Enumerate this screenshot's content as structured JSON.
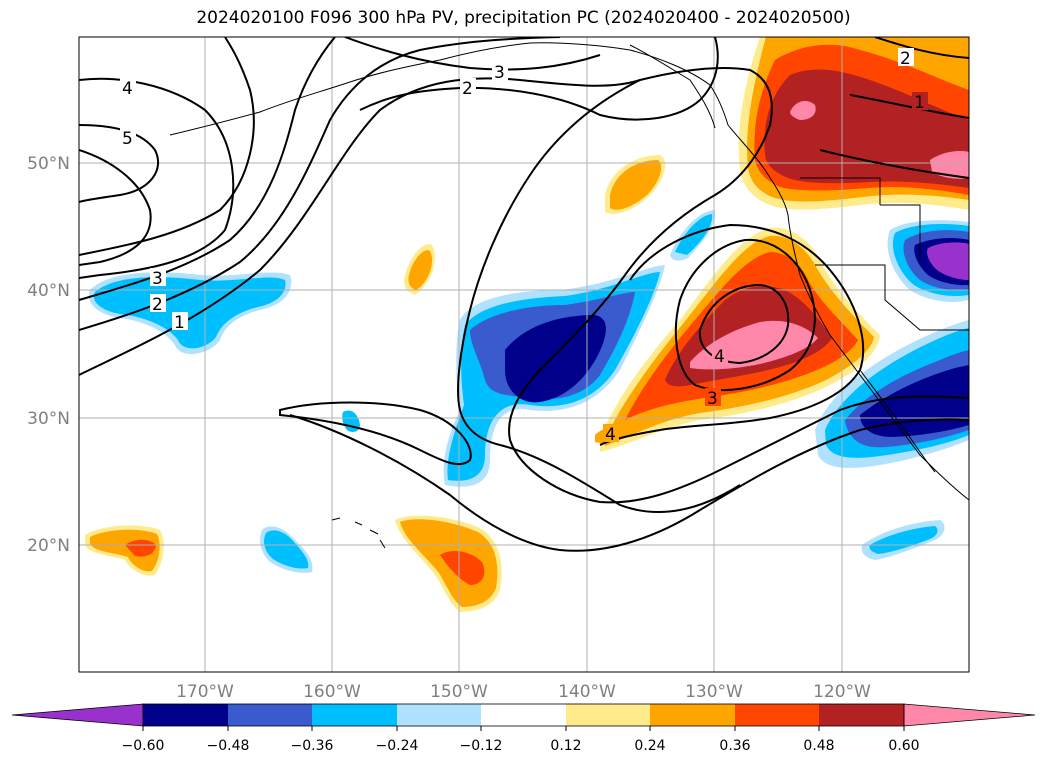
{
  "title": "2024020100 F096 300 hPa PV, precipitation PC (2024020400 - 2024020500)",
  "map": {
    "lon_ticks": [
      "170°W",
      "160°W",
      "150°W",
      "140°W",
      "130°W",
      "120°W"
    ],
    "lat_ticks": [
      "50°N",
      "40°N",
      "30°N",
      "20°N"
    ],
    "gridlines": true,
    "pv_contour_labels": [
      "4",
      "5",
      "3",
      "2",
      "1",
      "2",
      "3",
      "4",
      "3",
      "4",
      "2",
      "1",
      "2",
      "1"
    ]
  },
  "colorbar": {
    "tick_labels": [
      "−0.60",
      "−0.48",
      "−0.36",
      "−0.24",
      "−0.12",
      "0.12",
      "0.24",
      "0.36",
      "0.48",
      "0.60"
    ],
    "colors": [
      "#9932cc",
      "#00008b",
      "#3a5bcd",
      "#00bfff",
      "#b0e2ff",
      "#ffffff",
      "#ffeb8c",
      "#ffa500",
      "#ff4500",
      "#b22222",
      "#ff88aa",
      "#ff88aa"
    ],
    "extend": "both"
  }
}
